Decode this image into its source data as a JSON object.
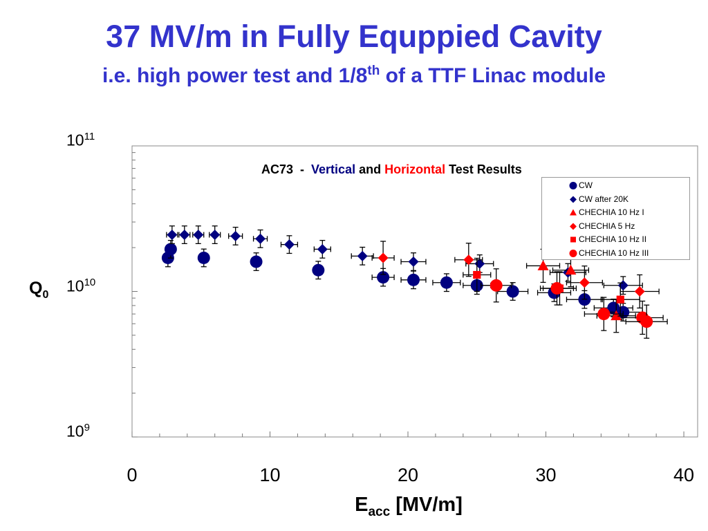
{
  "slide": {
    "title": "37 MV/m in Fully Equppied Cavity",
    "subtitle_main": "i.e. high power test and 1/8",
    "subtitle_sup": "th",
    "subtitle_end": " of a TTF Linac module"
  },
  "chart_data": {
    "type": "scatter",
    "title_parts": [
      {
        "text": "AC73  -  ",
        "color": "#000000"
      },
      {
        "text": "Vertical",
        "color": "#000080"
      },
      {
        "text": " and ",
        "color": "#000000"
      },
      {
        "text": "Horizontal",
        "color": "#ff0000"
      },
      {
        "text": " Test Results",
        "color": "#000000"
      }
    ],
    "xlabel_main": "E",
    "xlabel_sub": "acc",
    "xlabel_end": " [MV/m]",
    "ylabel_main": "Q",
    "ylabel_sub": "0",
    "xlim": [
      0,
      41
    ],
    "ylim": [
      1000000000.0,
      100000000000.0
    ],
    "y_scale": "log",
    "x_ticks": [
      "0",
      "10",
      "20",
      "30",
      "40"
    ],
    "y_ticks": [
      {
        "base": "10",
        "exp": "11"
      },
      {
        "base": "10",
        "exp": "10"
      },
      {
        "base": "10",
        "exp": "9"
      }
    ],
    "grid": false,
    "legend_position": "top-right",
    "colors": {
      "vertical": "#000080",
      "horizontal": "#ff0000"
    },
    "series": [
      {
        "name": "CW",
        "marker": "circle",
        "color": "#000080",
        "points": [
          {
            "x": 2.6,
            "y": 17000000000.0,
            "xerr": 0,
            "yerr": 0.15
          },
          {
            "x": 2.8,
            "y": 19500000000.0,
            "xerr": 0,
            "yerr": 0.15
          },
          {
            "x": 5.2,
            "y": 17000000000.0,
            "xerr": 0,
            "yerr": 0.15
          },
          {
            "x": 9.0,
            "y": 16000000000.0,
            "xerr": 0,
            "yerr": 0.15
          },
          {
            "x": 13.5,
            "y": 14000000000.0,
            "xerr": 0,
            "yerr": 0.15
          },
          {
            "x": 18.2,
            "y": 12500000000.0,
            "xerr": 0.8,
            "yerr": 0.15
          },
          {
            "x": 20.4,
            "y": 12000000000.0,
            "xerr": 0.9,
            "yerr": 0.15
          },
          {
            "x": 22.8,
            "y": 11500000000.0,
            "xerr": 1.0,
            "yerr": 0.15
          },
          {
            "x": 25.0,
            "y": 11000000000.0,
            "xerr": 1.0,
            "yerr": 0.15
          },
          {
            "x": 27.6,
            "y": 10000000000.0,
            "xerr": 1.1,
            "yerr": 0.15
          },
          {
            "x": 30.6,
            "y": 9800000000.0,
            "xerr": 1.2,
            "yerr": 0.15
          },
          {
            "x": 32.8,
            "y": 8800000000.0,
            "xerr": 1.3,
            "yerr": 0.15
          },
          {
            "x": 34.9,
            "y": 7700000000.0,
            "xerr": 1.4,
            "yerr": 0.15
          },
          {
            "x": 35.6,
            "y": 7200000000.0,
            "xerr": 1.4,
            "yerr": 0.15
          }
        ]
      },
      {
        "name": "CW after 20K",
        "marker": "diamond",
        "color": "#000080",
        "points": [
          {
            "x": 2.9,
            "y": 24500000000.0,
            "xerr": 0.4,
            "yerr": 0.15
          },
          {
            "x": 3.8,
            "y": 24500000000.0,
            "xerr": 0.4,
            "yerr": 0.15
          },
          {
            "x": 4.8,
            "y": 24500000000.0,
            "xerr": 0.4,
            "yerr": 0.15
          },
          {
            "x": 6.0,
            "y": 24500000000.0,
            "xerr": 0.4,
            "yerr": 0.15
          },
          {
            "x": 7.5,
            "y": 24000000000.0,
            "xerr": 0.5,
            "yerr": 0.15
          },
          {
            "x": 9.3,
            "y": 23000000000.0,
            "xerr": 0.5,
            "yerr": 0.15
          },
          {
            "x": 11.4,
            "y": 21000000000.0,
            "xerr": 0.6,
            "yerr": 0.15
          },
          {
            "x": 13.8,
            "y": 19500000000.0,
            "xerr": 0.6,
            "yerr": 0.15
          },
          {
            "x": 16.7,
            "y": 17500000000.0,
            "xerr": 0.8,
            "yerr": 0.15
          },
          {
            "x": 20.4,
            "y": 16000000000.0,
            "xerr": 0.9,
            "yerr": 0.15
          },
          {
            "x": 25.2,
            "y": 15500000000.0,
            "xerr": 1.0,
            "yerr": 0.15
          },
          {
            "x": 31.6,
            "y": 13500000000.0,
            "xerr": 1.3,
            "yerr": 0.15
          },
          {
            "x": 35.6,
            "y": 11000000000.0,
            "xerr": 1.4,
            "yerr": 0.15
          }
        ]
      },
      {
        "name": "CHECHIA 10 Hz I",
        "marker": "triangle",
        "color": "#ff0000",
        "points": [
          {
            "x": 29.8,
            "y": 15000000000.0,
            "xerr": 1.2,
            "yerr": 0.3
          },
          {
            "x": 31.8,
            "y": 14000000000.0,
            "xerr": 1.3,
            "yerr": 0.3
          },
          {
            "x": 35.1,
            "y": 6800000000.0,
            "xerr": 1.4,
            "yerr": 0.3
          }
        ]
      },
      {
        "name": "CHECHIA 5 Hz",
        "marker": "diamond",
        "color": "#ff0000",
        "points": [
          {
            "x": 18.2,
            "y": 17000000000.0,
            "xerr": 0.8,
            "yerr": 0.3
          },
          {
            "x": 24.4,
            "y": 16500000000.0,
            "xerr": 1.0,
            "yerr": 0.3
          },
          {
            "x": 32.8,
            "y": 11500000000.0,
            "xerr": 1.3,
            "yerr": 0.3
          },
          {
            "x": 36.8,
            "y": 10000000000.0,
            "xerr": 1.4,
            "yerr": 0.3
          }
        ]
      },
      {
        "name": "CHECHIA 10 Hz II",
        "marker": "square",
        "color": "#ff0000",
        "points": [
          {
            "x": 25.0,
            "y": 13000000000.0,
            "xerr": 1.0,
            "yerr": 0.3
          },
          {
            "x": 31.0,
            "y": 10500000000.0,
            "xerr": 1.2,
            "yerr": 0.3
          },
          {
            "x": 35.4,
            "y": 8800000000.0,
            "xerr": 1.4,
            "yerr": 0.3
          }
        ]
      },
      {
        "name": "CHECHIA 10 Hz III",
        "marker": "circle",
        "color": "#ff0000",
        "points": [
          {
            "x": 26.4,
            "y": 11000000000.0,
            "xerr": 1.1,
            "yerr": 0.3
          },
          {
            "x": 30.8,
            "y": 10500000000.0,
            "xerr": 1.2,
            "yerr": 0.3
          },
          {
            "x": 34.2,
            "y": 7000000000.0,
            "xerr": 1.4,
            "yerr": 0.3
          },
          {
            "x": 37.0,
            "y": 6600000000.0,
            "xerr": 1.5,
            "yerr": 0.3
          },
          {
            "x": 37.3,
            "y": 6200000000.0,
            "xerr": 1.5,
            "yerr": 0.3
          }
        ]
      }
    ]
  }
}
